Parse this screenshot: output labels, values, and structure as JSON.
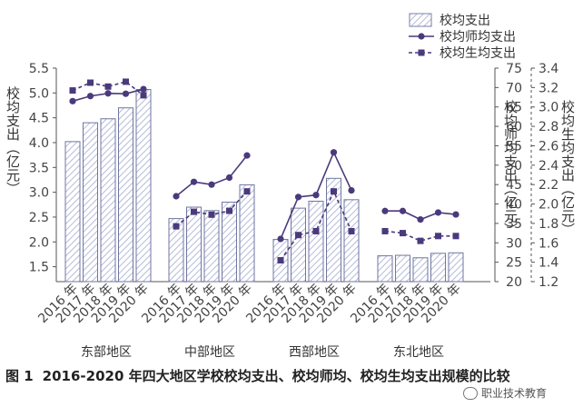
{
  "chart_data": {
    "type": "bar+line",
    "title": "2016-2020 年四大地区学校校均支出、校均师均、校均生均支出规模的比较",
    "figure_number": "图 1",
    "regions": [
      "东部地区",
      "中部地区",
      "西部地区",
      "东北地区"
    ],
    "years": [
      "2016 年",
      "2017 年",
      "2018 年",
      "2019 年",
      "2020 年"
    ],
    "left_axis": {
      "label": "校均支出（亿元）",
      "ylim": [
        1.2,
        5.5
      ],
      "ticks": [
        "1.5",
        "2.0",
        "2.5",
        "3.0",
        "3.5",
        "4.0",
        "4.5",
        "5.0",
        "5.5"
      ]
    },
    "mid_axis": {
      "label": "校均师均支出（亿元）",
      "ylim": [
        20,
        75
      ],
      "ticks": [
        "20",
        "25",
        "30",
        "35",
        "40",
        "45",
        "50",
        "55",
        "60",
        "65",
        "70",
        "75"
      ]
    },
    "right_axis": {
      "label": "校均生均支出（亿元）",
      "ylim": [
        1.2,
        3.4
      ],
      "ticks": [
        "1.2",
        "1.4",
        "1.6",
        "1.8",
        "2.0",
        "2.2",
        "2.4",
        "2.6",
        "2.8",
        "3.0",
        "3.2",
        "3.4"
      ]
    },
    "series": [
      {
        "name": "校均支出",
        "kind": "bar",
        "axis": "left",
        "color": "#9aa3c8",
        "values": [
          [
            4.02,
            4.4,
            4.48,
            4.7,
            5.07
          ],
          [
            2.47,
            2.7,
            2.63,
            2.8,
            3.15
          ],
          [
            2.05,
            2.68,
            2.82,
            3.28,
            2.85
          ],
          [
            1.72,
            1.73,
            1.68,
            1.77,
            1.78
          ]
        ]
      },
      {
        "name": "校均师均支出",
        "kind": "line",
        "axis": "mid",
        "color": "#4a3a7c",
        "values": [
          [
            66.5,
            67.8,
            68.5,
            68.4,
            69.6
          ],
          [
            42,
            45.7,
            45,
            46.8,
            52.5
          ],
          [
            31,
            41.8,
            42.3,
            53.3,
            43.5
          ],
          [
            38.2,
            38.2,
            36,
            37.8,
            37.3
          ]
        ]
      },
      {
        "name": "校均生均支出",
        "kind": "dashed-line",
        "axis": "right",
        "color": "#4a3a7c",
        "values": [
          [
            3.17,
            3.25,
            3.21,
            3.26,
            3.12
          ],
          [
            1.77,
            1.92,
            1.89,
            1.93,
            2.13
          ],
          [
            1.42,
            1.68,
            1.72,
            2.13,
            1.72
          ],
          [
            1.72,
            1.7,
            1.62,
            1.67,
            1.67
          ]
        ]
      }
    ],
    "legend": [
      "校均支出",
      "校均师均支出",
      "校均生均支出"
    ]
  },
  "watermark": "职业技术教育"
}
